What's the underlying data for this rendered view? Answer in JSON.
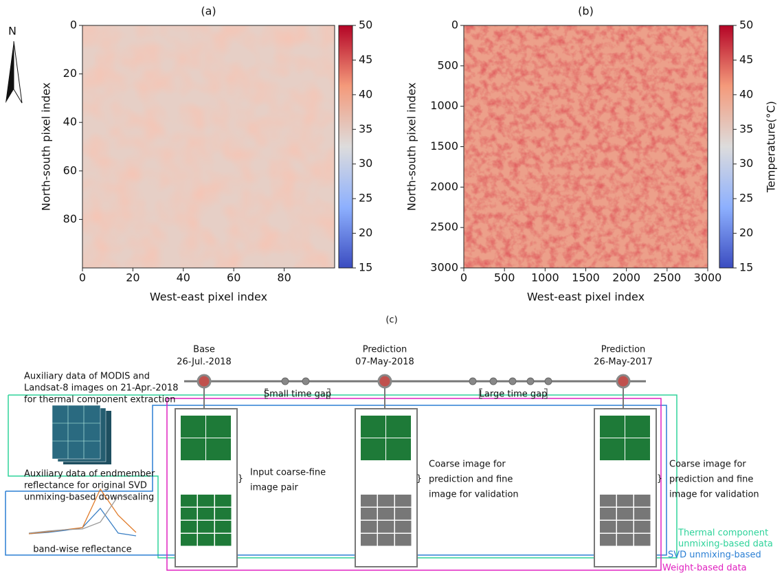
{
  "panels": [
    {
      "label": "(a)",
      "x_label": "West-east pixel index",
      "y_label": "North-south pixel index",
      "xlim": [
        0,
        100
      ],
      "ylim": [
        0,
        100
      ],
      "xticks": [
        0,
        20,
        40,
        60,
        80
      ],
      "yticks": [
        0,
        20,
        40,
        60,
        80
      ],
      "colorbar": {
        "lim": [
          15,
          50
        ],
        "ticks": [
          15,
          20,
          25,
          30,
          35,
          40,
          45,
          50
        ]
      }
    },
    {
      "label": "(b)",
      "x_label": "West-east pixel index",
      "y_label": "North-south pixel index",
      "xlim": [
        0,
        3000
      ],
      "ylim": [
        0,
        3000
      ],
      "xticks": [
        0,
        500,
        1000,
        1500,
        2000,
        2500,
        3000
      ],
      "yticks": [
        0,
        500,
        1000,
        1500,
        2000,
        2500,
        3000
      ],
      "colorbar": {
        "label": "Temperature(°C)",
        "lim": [
          15,
          50
        ],
        "ticks": [
          15,
          20,
          25,
          30,
          35,
          40,
          45,
          50
        ]
      }
    }
  ],
  "north": "N",
  "panel_c": {
    "label": "(c)",
    "timeline": [
      {
        "title": "Base",
        "date": "26-Jul.-2018"
      },
      {
        "title": "Prediction",
        "date": "07-May-2018"
      },
      {
        "title": "Prediction",
        "date": "26-May-2017"
      }
    ],
    "gaps": [
      "Small time gap",
      "Large time gap"
    ],
    "descriptions": [
      [
        "Input coarse-fine",
        "image pair"
      ],
      [
        "Coarse image for",
        "prediction and fine",
        "image for validation"
      ],
      [
        "Coarse image for",
        "prediction and fine",
        "image for validation"
      ]
    ],
    "auxiliary": [
      [
        "Auxiliary data of MODIS and",
        "Landsat-8 images on 21-Apr.-2018",
        "for thermal component extraction"
      ],
      [
        "Auxiliary data of endmember",
        "reflectance for original SVD",
        "unmixing-based downscaling"
      ]
    ],
    "chart_caption": "band-wise reflectance",
    "legend": [
      [
        "Thermal component",
        "unmixing-based data"
      ],
      [
        "SVD unmixing-based"
      ],
      [
        "Weight-based data"
      ]
    ]
  }
}
